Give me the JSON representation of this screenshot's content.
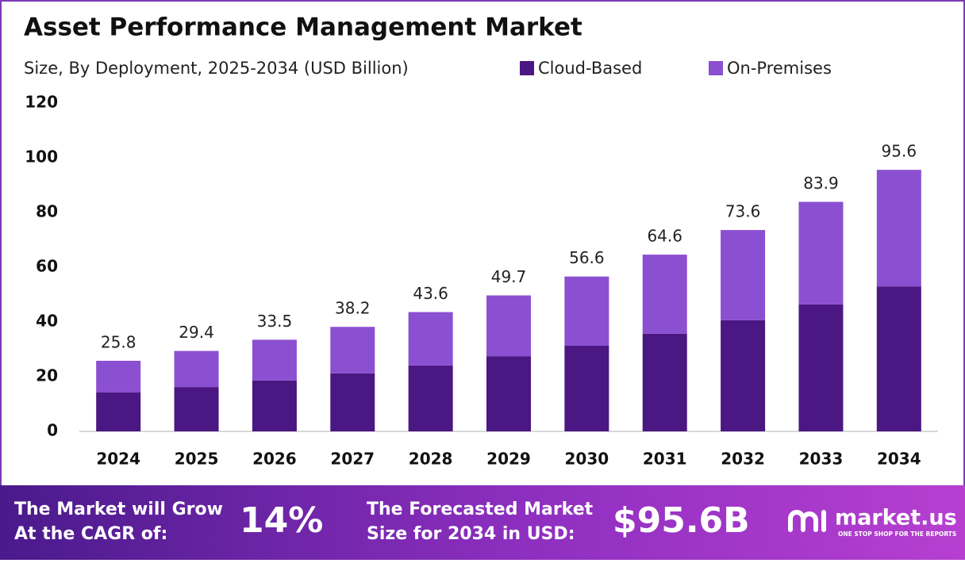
{
  "chart_data": {
    "type": "stacked_bar",
    "title": "Asset Performance Management Market",
    "subtitle": "Size, By Deployment, 2025-2034 (USD Billion)",
    "categories": [
      "2024",
      "2025",
      "2026",
      "2027",
      "2028",
      "2029",
      "2030",
      "2031",
      "2032",
      "2033",
      "2034"
    ],
    "series": [
      {
        "name": "Cloud-Based",
        "color": "#4b1782",
        "values": [
          14.2,
          16.2,
          18.6,
          21.2,
          24.1,
          27.5,
          31.3,
          35.7,
          40.6,
          46.4,
          53.0
        ]
      },
      {
        "name": "On-Premises",
        "color": "#8b4fd1",
        "values": [
          11.6,
          13.2,
          14.9,
          17.0,
          19.5,
          22.2,
          25.3,
          28.9,
          33.0,
          37.5,
          42.6
        ]
      }
    ],
    "totals": [
      25.8,
      29.4,
      33.5,
      38.2,
      43.6,
      49.7,
      56.6,
      64.6,
      73.6,
      83.9,
      95.6
    ],
    "ylim": [
      0,
      120
    ],
    "yticks": [
      0,
      20,
      40,
      60,
      80,
      100,
      120
    ],
    "grid": false,
    "legend": "top"
  },
  "footer": {
    "cagr_text": [
      "The Market will Grow",
      "At the CAGR of:"
    ],
    "cagr_value": "14%",
    "forecast_text": [
      "The Forecasted Market",
      "Size for 2034 in USD:"
    ],
    "forecast_value": "$95.6B",
    "brand": "market.us",
    "tagline": "ONE STOP SHOP FOR THE REPORTS"
  }
}
